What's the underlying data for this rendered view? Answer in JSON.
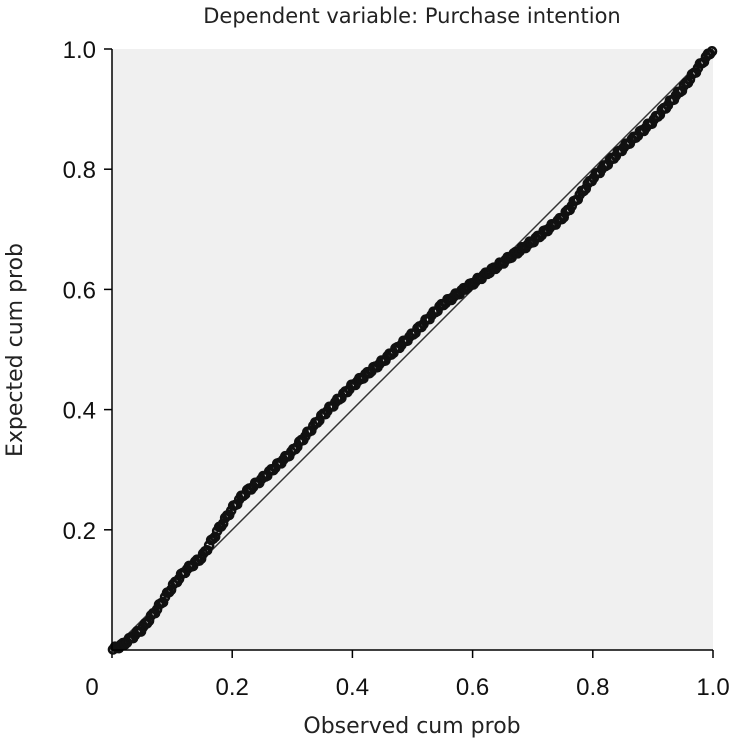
{
  "chart_data": {
    "type": "scatter",
    "title": "Dependent variable: Purchase intention",
    "xlabel": "Observed cum prob",
    "ylabel": "Expected cum prob",
    "xlim": [
      0,
      1
    ],
    "ylim": [
      0,
      1
    ],
    "x_ticks": [
      {
        "value": 0,
        "label": "0"
      },
      {
        "value": 0.2,
        "label": "0.2"
      },
      {
        "value": 0.4,
        "label": "0.4"
      },
      {
        "value": 0.6,
        "label": "0.6"
      },
      {
        "value": 0.8,
        "label": "0.8"
      },
      {
        "value": 1.0,
        "label": "1.0"
      }
    ],
    "y_ticks": [
      {
        "value": 0.2,
        "label": "0.2"
      },
      {
        "value": 0.4,
        "label": "0.4"
      },
      {
        "value": 0.6,
        "label": "0.6"
      },
      {
        "value": 0.8,
        "label": "0.8"
      },
      {
        "value": 1.0,
        "label": "1.0"
      }
    ],
    "grid": false,
    "plot_background": "#f0f0f0",
    "marker_color": "#111111",
    "reference_line": {
      "from": [
        0,
        0
      ],
      "to": [
        1,
        1
      ],
      "color": "#333333"
    },
    "curve_knots": [
      [
        0.0,
        0.0
      ],
      [
        0.02,
        0.01
      ],
      [
        0.05,
        0.035
      ],
      [
        0.08,
        0.075
      ],
      [
        0.1,
        0.105
      ],
      [
        0.12,
        0.13
      ],
      [
        0.15,
        0.155
      ],
      [
        0.18,
        0.205
      ],
      [
        0.2,
        0.235
      ],
      [
        0.22,
        0.26
      ],
      [
        0.25,
        0.285
      ],
      [
        0.3,
        0.33
      ],
      [
        0.35,
        0.39
      ],
      [
        0.4,
        0.44
      ],
      [
        0.45,
        0.48
      ],
      [
        0.5,
        0.525
      ],
      [
        0.55,
        0.575
      ],
      [
        0.6,
        0.61
      ],
      [
        0.65,
        0.645
      ],
      [
        0.7,
        0.68
      ],
      [
        0.75,
        0.72
      ],
      [
        0.8,
        0.785
      ],
      [
        0.85,
        0.835
      ],
      [
        0.9,
        0.88
      ],
      [
        0.95,
        0.935
      ],
      [
        0.98,
        0.975
      ],
      [
        1.0,
        1.0
      ]
    ],
    "point_count": 300
  }
}
